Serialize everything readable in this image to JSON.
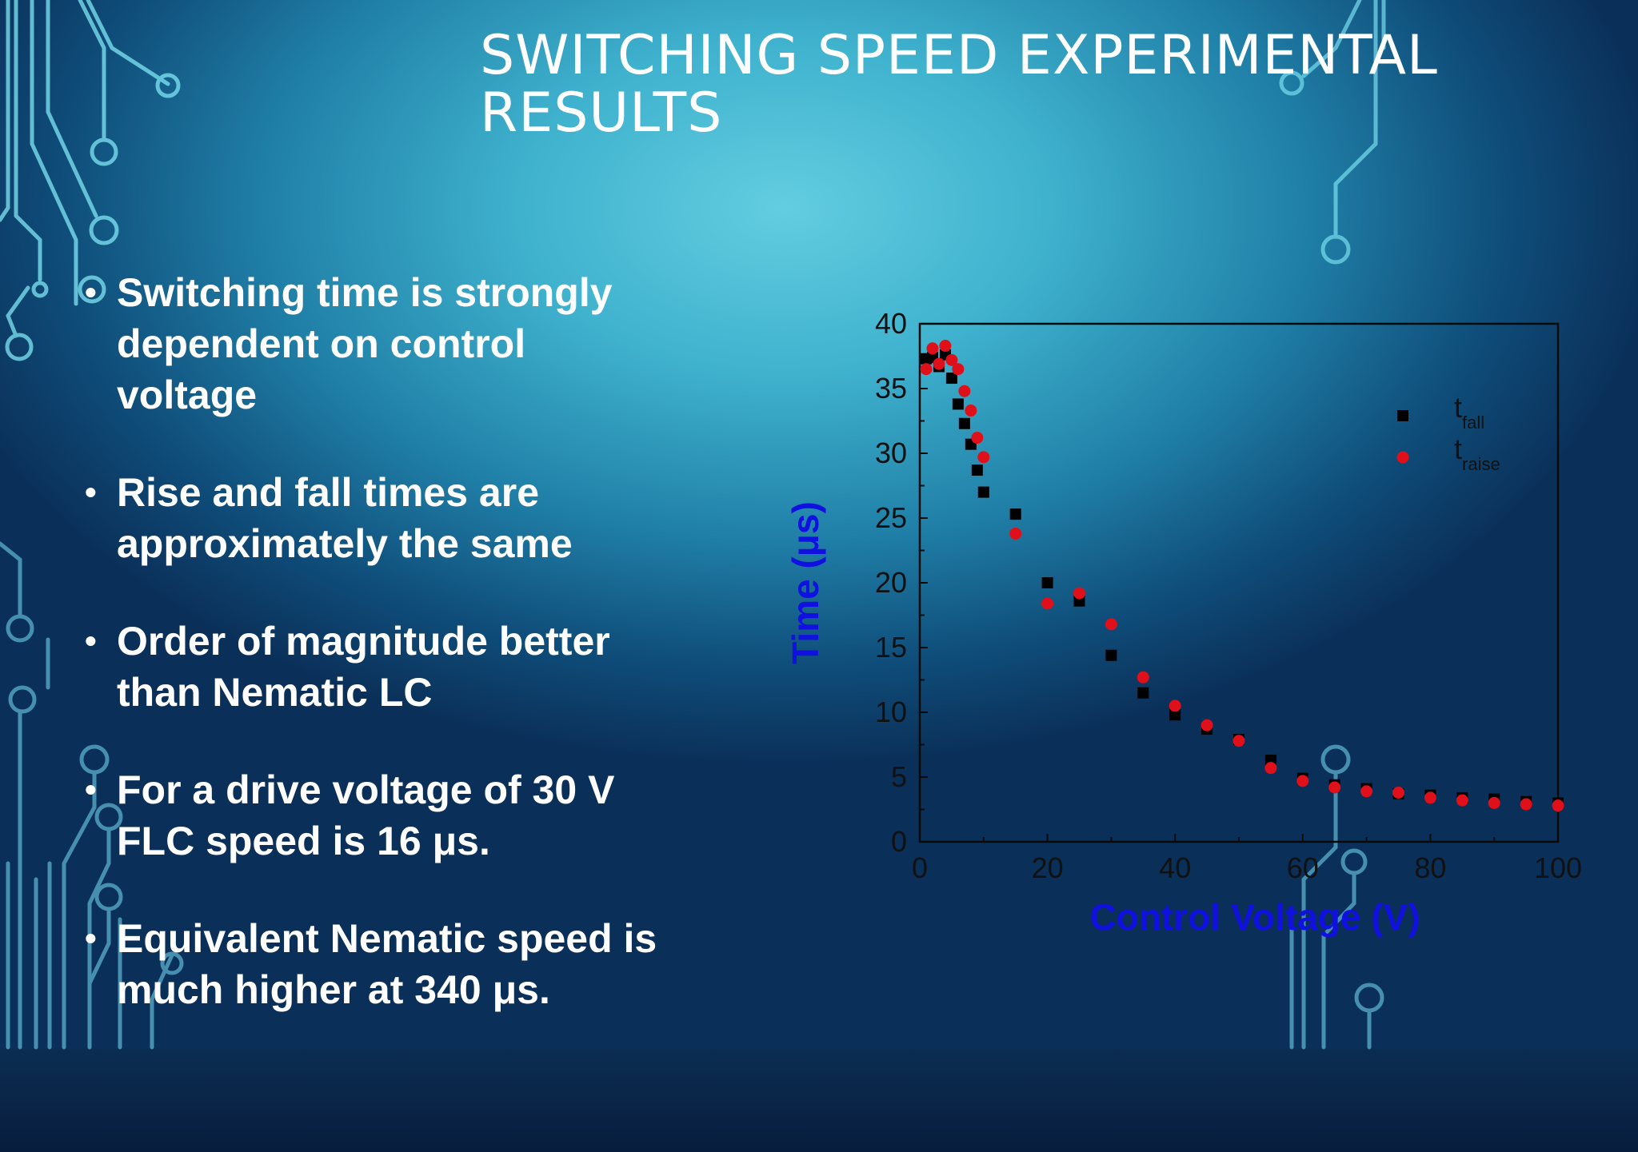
{
  "slide": {
    "title_lines": [
      "SWITCHING SPEED EXPERIMENTAL",
      "RESULTS"
    ],
    "bullets": [
      {
        "line": "Switching time is strongly\ndependent on control\nvoltage"
      },
      {
        "line": "Rise and fall times are\napproximately the same"
      },
      {
        "line": "Order of magnitude better\nthan Nematic LC"
      },
      {
        "line": "For a drive voltage of 30 V\nFLC speed is 16 μs."
      },
      {
        "line": "Equivalent Nematic speed is\nmuch higher at 340 μs."
      }
    ],
    "bullet_symbol": "•",
    "colors": {
      "text": "#ffffff",
      "axis_label": "#1010e0",
      "fall_marker": "#000000",
      "raise_marker": "#e0101a"
    }
  },
  "chart_data": {
    "type": "scatter",
    "xlabel": "Control Voltage (V)",
    "ylabel": "Time (μs)",
    "xlim": [
      0,
      100
    ],
    "ylim": [
      0,
      40
    ],
    "xticks": [
      "0",
      "20",
      "40",
      "60",
      "80",
      "100"
    ],
    "yticks": [
      "0",
      "5",
      "10",
      "15",
      "20",
      "25",
      "30",
      "35",
      "40"
    ],
    "legend_position": "top-right",
    "grid": false,
    "series": [
      {
        "name": "t_fall",
        "legend_main": "t",
        "legend_sub": "fall",
        "marker": "square",
        "color": "#000000",
        "x": [
          1,
          2,
          3,
          4,
          5,
          6,
          7,
          8,
          9,
          10,
          15,
          20,
          25,
          30,
          35,
          40,
          45,
          50,
          55,
          60,
          65,
          70,
          75,
          80,
          85,
          90,
          95,
          100
        ],
        "y": [
          37.3,
          37.4,
          36.7,
          37.6,
          35.8,
          33.8,
          32.3,
          30.7,
          28.7,
          27.0,
          25.3,
          20.0,
          18.6,
          14.4,
          11.5,
          9.8,
          8.7,
          7.9,
          6.3,
          4.9,
          4.4,
          4.1,
          3.7,
          3.6,
          3.4,
          3.3,
          3.1,
          3.0
        ]
      },
      {
        "name": "t_raise",
        "legend_main": "t",
        "legend_sub": "raise",
        "marker": "circle",
        "color": "#e0101a",
        "x": [
          1,
          2,
          3,
          4,
          5,
          6,
          7,
          8,
          9,
          10,
          15,
          20,
          25,
          30,
          35,
          40,
          45,
          50,
          55,
          60,
          65,
          70,
          75,
          80,
          85,
          90,
          95,
          100
        ],
        "y": [
          36.5,
          38.1,
          36.9,
          38.3,
          37.2,
          36.5,
          34.8,
          33.3,
          31.2,
          29.7,
          23.8,
          18.4,
          19.2,
          16.8,
          12.7,
          10.5,
          9.0,
          7.8,
          5.7,
          4.7,
          4.2,
          3.9,
          3.8,
          3.4,
          3.2,
          3.0,
          2.9,
          2.8
        ]
      }
    ]
  }
}
